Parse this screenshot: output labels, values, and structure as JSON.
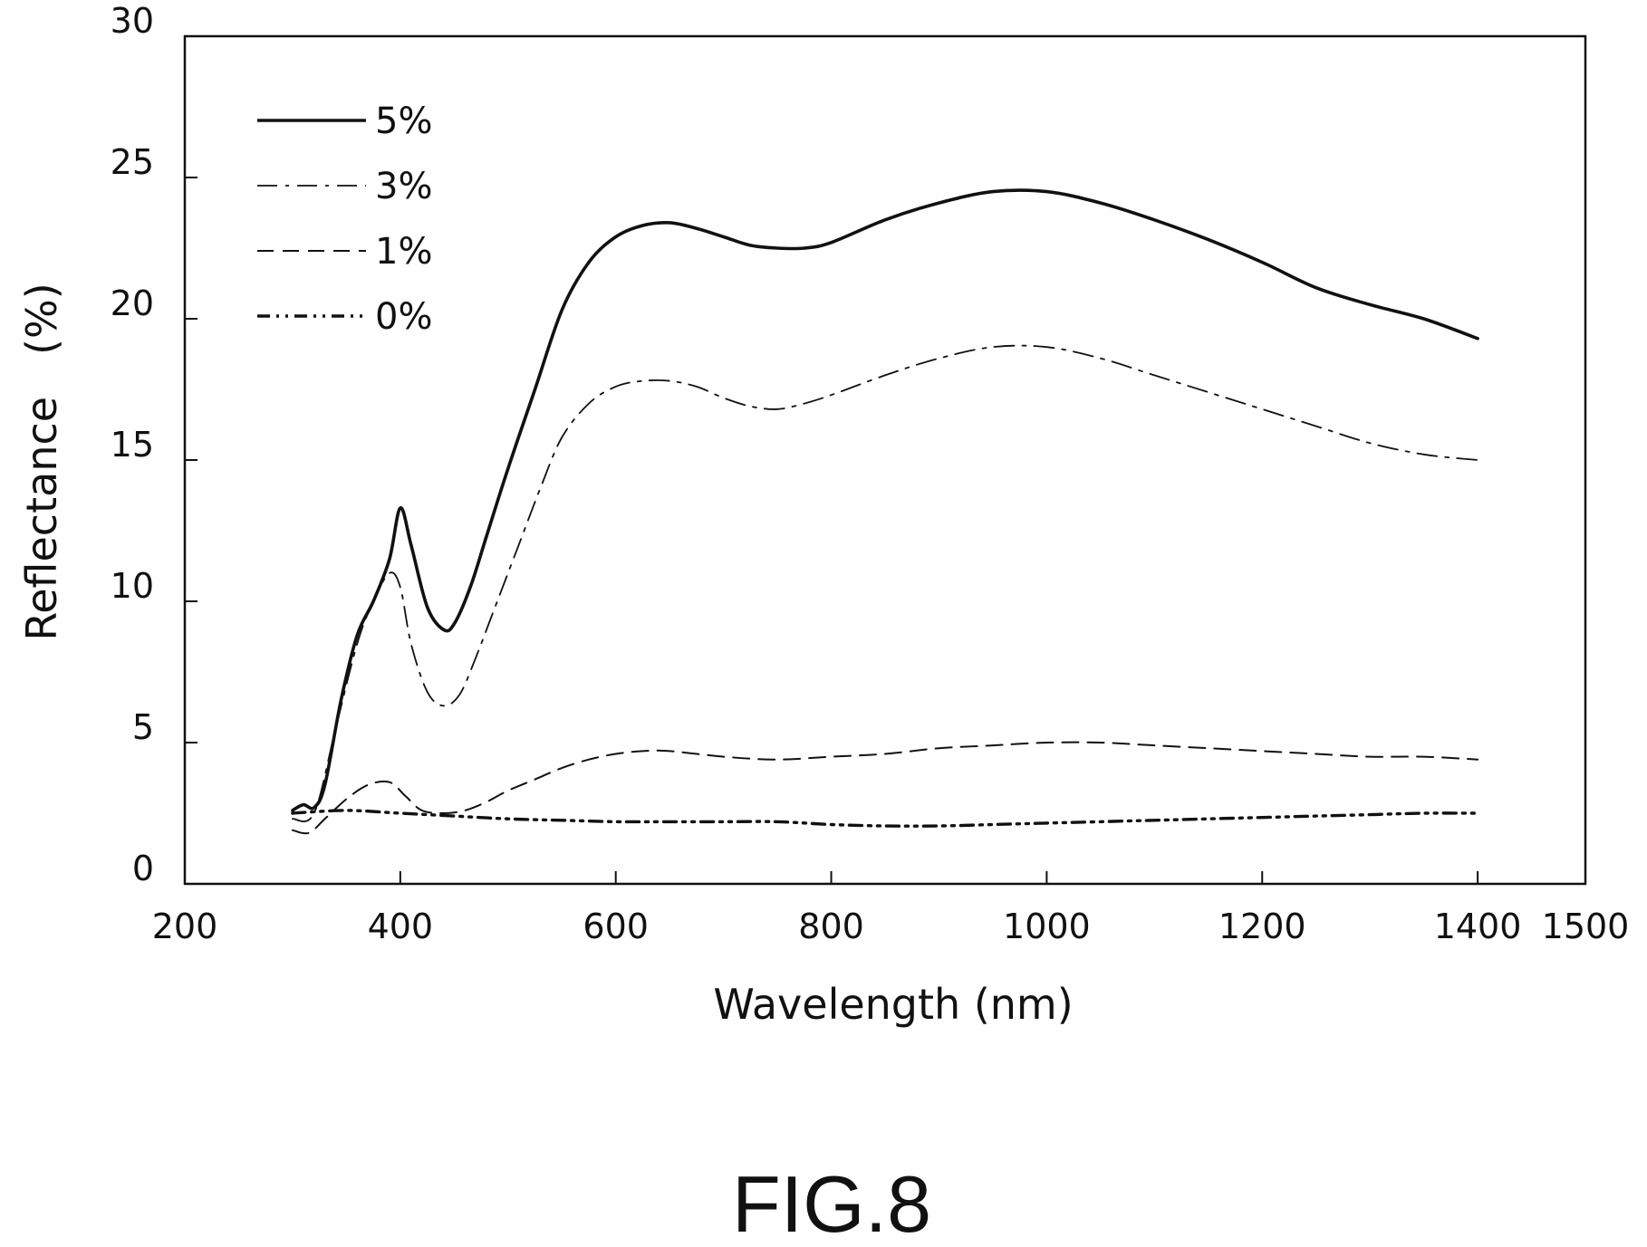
{
  "chart_data": {
    "type": "line",
    "xlabel": "Wavelength (nm)",
    "ylabel": "Reflectance　(%)",
    "xlim": [
      200,
      1500
    ],
    "ylim": [
      0,
      30
    ],
    "xticks": [
      200,
      400,
      600,
      800,
      1000,
      1200,
      1400,
      1500
    ],
    "yticks": [
      0,
      5,
      10,
      15,
      20,
      25,
      30
    ],
    "grid": false,
    "legend_placement": "top-left",
    "series": [
      {
        "name": "5%",
        "line_style": "solid",
        "x": [
          300,
          310,
          320,
          330,
          345,
          360,
          375,
          390,
          400,
          410,
          425,
          440,
          450,
          465,
          480,
          500,
          525,
          550,
          575,
          600,
          625,
          650,
          675,
          700,
          725,
          750,
          775,
          800,
          850,
          900,
          950,
          1000,
          1050,
          1100,
          1150,
          1200,
          1250,
          1300,
          1350,
          1400
        ],
        "y": [
          2.6,
          2.8,
          2.7,
          3.5,
          6.5,
          8.8,
          10.0,
          11.5,
          13.3,
          12.0,
          9.8,
          9.0,
          9.2,
          10.5,
          12.3,
          14.7,
          17.5,
          20.3,
          22.0,
          22.9,
          23.3,
          23.4,
          23.2,
          22.9,
          22.6,
          22.5,
          22.5,
          22.7,
          23.5,
          24.1,
          24.5,
          24.5,
          24.1,
          23.5,
          22.8,
          22.0,
          21.1,
          20.5,
          20.0,
          19.3
        ]
      },
      {
        "name": "3%",
        "line_style": "dash-dot",
        "x": [
          300,
          320,
          340,
          360,
          375,
          390,
          400,
          410,
          425,
          440,
          455,
          470,
          490,
          510,
          530,
          550,
          575,
          600,
          625,
          650,
          675,
          700,
          725,
          750,
          775,
          800,
          850,
          900,
          950,
          1000,
          1050,
          1100,
          1150,
          1200,
          1250,
          1300,
          1350,
          1400
        ],
        "y": [
          2.3,
          2.5,
          5.5,
          8.5,
          10.0,
          11.0,
          10.5,
          8.5,
          6.8,
          6.3,
          6.7,
          8.0,
          10.0,
          12.0,
          14.0,
          15.8,
          17.0,
          17.6,
          17.8,
          17.8,
          17.6,
          17.2,
          16.9,
          16.8,
          17.0,
          17.3,
          18.0,
          18.6,
          19.0,
          19.0,
          18.6,
          18.0,
          17.4,
          16.8,
          16.2,
          15.6,
          15.2,
          15.0
        ]
      },
      {
        "name": "1%",
        "line_style": "dashed",
        "x": [
          300,
          315,
          330,
          350,
          370,
          390,
          405,
          420,
          440,
          460,
          480,
          500,
          525,
          550,
          575,
          600,
          625,
          650,
          700,
          750,
          800,
          850,
          900,
          950,
          1000,
          1050,
          1100,
          1150,
          1200,
          1250,
          1300,
          1350,
          1400
        ],
        "y": [
          1.9,
          1.8,
          2.3,
          3.0,
          3.5,
          3.6,
          3.1,
          2.6,
          2.5,
          2.6,
          2.9,
          3.3,
          3.7,
          4.1,
          4.4,
          4.6,
          4.7,
          4.7,
          4.5,
          4.4,
          4.5,
          4.6,
          4.8,
          4.9,
          5.0,
          5.0,
          4.9,
          4.8,
          4.7,
          4.6,
          4.5,
          4.5,
          4.4
        ]
      },
      {
        "name": "0%",
        "line_style": "dash-dot-dot",
        "x": [
          300,
          350,
          400,
          450,
          500,
          550,
          600,
          650,
          700,
          750,
          800,
          850,
          900,
          950,
          1000,
          1050,
          1100,
          1150,
          1200,
          1250,
          1300,
          1350,
          1400
        ],
        "y": [
          2.5,
          2.6,
          2.5,
          2.4,
          2.3,
          2.25,
          2.2,
          2.2,
          2.2,
          2.2,
          2.1,
          2.05,
          2.05,
          2.1,
          2.15,
          2.2,
          2.25,
          2.3,
          2.35,
          2.4,
          2.45,
          2.5,
          2.5
        ]
      }
    ],
    "caption": "FIG.8"
  }
}
